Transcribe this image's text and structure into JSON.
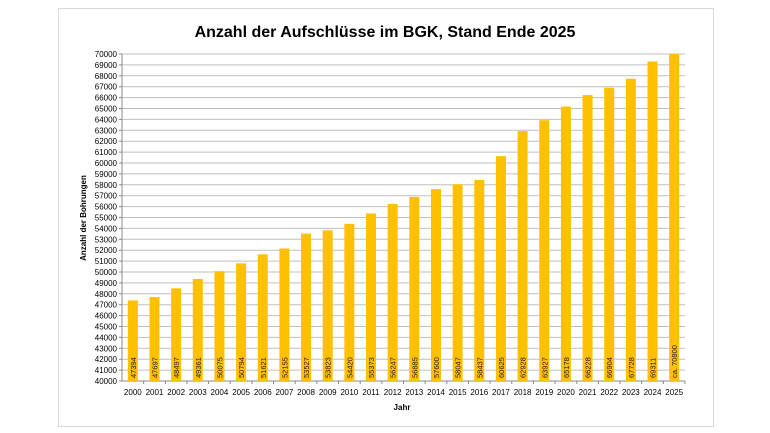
{
  "chart_data": {
    "type": "bar",
    "title": "Anzahl der Aufschlüsse im BGK, Stand Ende 2025",
    "xlabel": "Jahr",
    "ylabel": "Anzahl der Bohrungen",
    "ylim": [
      40000,
      70000
    ],
    "ytick_step": 1000,
    "grid": true,
    "bar_color": "#FFC000",
    "categories": [
      "2000",
      "2001",
      "2002",
      "2003",
      "2004",
      "2005",
      "2006",
      "2007",
      "2008",
      "2009",
      "2010",
      "2011",
      "2012",
      "2013",
      "2014",
      "2015",
      "2016",
      "2017",
      "2018",
      "2019",
      "2020",
      "2021",
      "2022",
      "2023",
      "2024",
      "2025"
    ],
    "values": [
      47394,
      47697,
      48497,
      49361,
      50075,
      50794,
      51621,
      52155,
      53527,
      53823,
      54420,
      55373,
      56247,
      56885,
      57600,
      58047,
      58437,
      60625,
      62928,
      63927,
      65178,
      66228,
      66904,
      67728,
      69311,
      70800
    ],
    "data_labels": [
      "47394",
      "47697",
      "48497",
      "49361",
      "50075",
      "50794",
      "51621",
      "52155",
      "53527",
      "53823",
      "54420",
      "55373",
      "56247",
      "56885",
      "57600",
      "58047",
      "58437",
      "60625",
      "62928",
      "63927",
      "65178",
      "66228",
      "66904",
      "67728",
      "69311",
      "ca. 70800"
    ]
  }
}
